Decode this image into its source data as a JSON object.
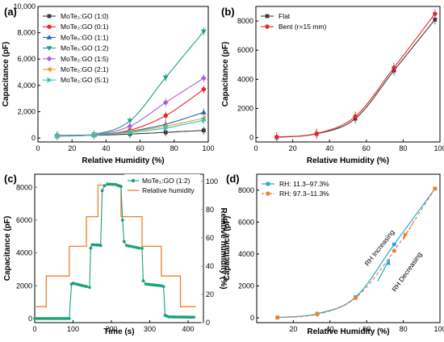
{
  "chart_data": [
    {
      "type": "line",
      "panel_label": "(a)",
      "xlabel": "Relative Humidity (%)",
      "ylabel": "Capacitance (pF)",
      "xlim": [
        0,
        100
      ],
      "ylim": [
        -300,
        10000
      ],
      "xticks": [
        "0",
        "20",
        "40",
        "60",
        "80",
        "100"
      ],
      "yticks": [
        "0",
        "2,000",
        "4,000",
        "6,000",
        "8,000",
        "10,000"
      ],
      "legend_position": "top-left",
      "x": [
        11.3,
        33,
        54,
        75,
        97.3
      ],
      "series": [
        {
          "name": "MoTe₂:GO (1:0)",
          "color": "#3a3a3a",
          "marker": "square",
          "values": [
            160,
            200,
            300,
            430,
            580
          ]
        },
        {
          "name": "MoTe₂:GO (0:1)",
          "color": "#e8262a",
          "marker": "circle",
          "values": [
            200,
            260,
            600,
            1700,
            3700
          ]
        },
        {
          "name": "MoTe₂:GO (1:1)",
          "color": "#1f67b0",
          "marker": "triangle-up",
          "values": [
            180,
            240,
            520,
            1050,
            1950
          ]
        },
        {
          "name": "MoTe₂:GO (1:2)",
          "color": "#1aa17a",
          "marker": "triangle-down",
          "values": [
            150,
            280,
            1300,
            4600,
            8100
          ]
        },
        {
          "name": "MoTe₂:GO (1:5)",
          "color": "#a95fd6",
          "marker": "diamond",
          "values": [
            170,
            260,
            900,
            2700,
            4550
          ]
        },
        {
          "name": "MoTe₂:GO (2:1)",
          "color": "#e89a1c",
          "marker": "triangle-left",
          "values": [
            140,
            230,
            480,
            900,
            1500
          ]
        },
        {
          "name": "MoTe₂:GO (5:1)",
          "color": "#2bc4c4",
          "marker": "triangle-right",
          "values": [
            130,
            220,
            420,
            760,
            1350
          ]
        }
      ]
    },
    {
      "type": "line",
      "panel_label": "(b)",
      "xlabel": "Relative Humidity (%)",
      "ylabel": "Capacitance (pF)",
      "xlim": [
        0,
        100
      ],
      "ylim": [
        -300,
        9000
      ],
      "xticks": [
        "0",
        "20",
        "40",
        "60",
        "80",
        "100"
      ],
      "yticks": [
        "0",
        "2000",
        "4000",
        "6000",
        "8000"
      ],
      "legend_position": "top-left",
      "x": [
        11.3,
        33,
        54,
        75,
        97.3
      ],
      "series": [
        {
          "name": "Flat",
          "color": "#3a3a3a",
          "marker": "square",
          "values": [
            20,
            260,
            1300,
            4600,
            8100
          ]
        },
        {
          "name": "Bent (r=15 mm)",
          "color": "#e8262a",
          "marker": "circle",
          "values": [
            40,
            280,
            1450,
            4800,
            8500
          ]
        }
      ]
    },
    {
      "type": "line",
      "panel_label": "(c)",
      "xlabel": "Time (s)",
      "ylabel": "Capacitance (pF)",
      "y2label": "Relative humidity (%)",
      "xlim": [
        0,
        440
      ],
      "ylim": [
        -250,
        8800
      ],
      "y2lim": [
        0,
        105
      ],
      "xticks": [
        "0",
        "100",
        "200",
        "300",
        "400"
      ],
      "yticks": [
        "0",
        "2000",
        "4000",
        "6000",
        "8000"
      ],
      "y2ticks": [
        "0",
        "20",
        "40",
        "60",
        "80",
        "100"
      ],
      "legend_position": "top-right",
      "series": [
        {
          "name": "MoTe₂:GO (1:2)",
          "color": "#1aa17a",
          "axis": "left",
          "points": [
            [
              0,
              0
            ],
            [
              90,
              0
            ],
            [
              96,
              2100
            ],
            [
              100,
              2150
            ],
            [
              135,
              1950
            ],
            [
              143,
              1900
            ],
            [
              146,
              4300
            ],
            [
              150,
              4500
            ],
            [
              168,
              4480
            ],
            [
              172,
              4450
            ],
            [
              176,
              7800
            ],
            [
              182,
              8100
            ],
            [
              190,
              8200
            ],
            [
              210,
              8180
            ],
            [
              225,
              8050
            ],
            [
              229,
              6000
            ],
            [
              233,
              4700
            ],
            [
              240,
              4450
            ],
            [
              272,
              4300
            ],
            [
              280,
              4280
            ],
            [
              283,
              2300
            ],
            [
              290,
              2100
            ],
            [
              330,
              2000
            ],
            [
              336,
              1950
            ],
            [
              340,
              200
            ],
            [
              350,
              100
            ],
            [
              420,
              80
            ]
          ]
        },
        {
          "name": "Relative humidity",
          "color": "#f07f2a",
          "axis": "right",
          "points": [
            [
              0,
              11.3
            ],
            [
              30,
              11.3
            ],
            [
              30,
              33
            ],
            [
              90,
              33
            ],
            [
              90,
              54
            ],
            [
              135,
              54
            ],
            [
              135,
              75
            ],
            [
              165,
              75
            ],
            [
              165,
              97.3
            ],
            [
              225,
              97.3
            ],
            [
              225,
              75
            ],
            [
              280,
              75
            ],
            [
              280,
              54
            ],
            [
              330,
              54
            ],
            [
              330,
              33
            ],
            [
              380,
              33
            ],
            [
              380,
              11.3
            ],
            [
              420,
              11.3
            ]
          ]
        }
      ]
    },
    {
      "type": "line",
      "panel_label": "(d)",
      "xlabel": "Relative Humidity (%)",
      "ylabel": "Capacitance (pF)",
      "xlim": [
        0,
        100
      ],
      "ylim": [
        -300,
        9000
      ],
      "xticks": [
        "20",
        "40",
        "60",
        "80",
        "100"
      ],
      "yticks": [
        "0",
        "2000",
        "4000",
        "6000",
        "8000"
      ],
      "legend_position": "top-left",
      "x": [
        11.3,
        33,
        54,
        75,
        97.3
      ],
      "series": [
        {
          "name": "RH: 11.3–97.3%",
          "color": "#1ea7e0",
          "marker": "square",
          "values": [
            20,
            260,
            1300,
            4600,
            8100
          ]
        },
        {
          "name": "RH: 97.3–11.3%",
          "color": "#f07f2a",
          "marker": "circle",
          "dashed": true,
          "values": [
            20,
            220,
            1250,
            4200,
            8100
          ]
        }
      ],
      "annotations": [
        {
          "text": "RH Increasing",
          "color": "#1ea7e0"
        },
        {
          "text": "RH Decreasing",
          "color": "#f07f2a"
        }
      ]
    }
  ]
}
